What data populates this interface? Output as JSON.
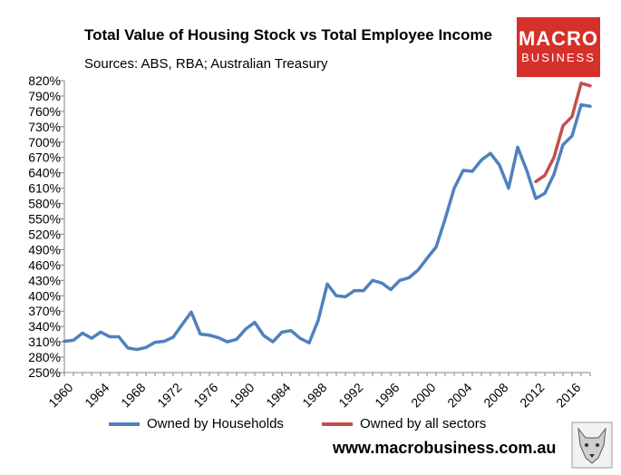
{
  "title": "Total Value of Housing Stock vs Total Employee Income",
  "subtitle": "Sources: ABS, RBA; Australian Treasury",
  "logo": {
    "line1": "MACRO",
    "line2": "BUSINESS",
    "color": "#d5302b"
  },
  "website": "www.macrobusiness.com.au",
  "chart_data": {
    "type": "line",
    "x": [
      1960,
      1961,
      1962,
      1963,
      1964,
      1965,
      1966,
      1967,
      1968,
      1969,
      1970,
      1971,
      1972,
      1973,
      1974,
      1975,
      1976,
      1977,
      1978,
      1979,
      1980,
      1981,
      1982,
      1983,
      1984,
      1985,
      1986,
      1987,
      1988,
      1989,
      1990,
      1991,
      1992,
      1993,
      1994,
      1995,
      1996,
      1997,
      1998,
      1999,
      2000,
      2001,
      2002,
      2003,
      2004,
      2005,
      2006,
      2007,
      2008,
      2009,
      2010,
      2011,
      2012,
      2013,
      2014,
      2015,
      2016,
      2017,
      2018
    ],
    "series": [
      {
        "name": "Owned by Households",
        "color": "#4f81bd",
        "values": [
          311,
          313,
          327,
          317,
          329,
          320,
          320,
          298,
          295,
          299,
          309,
          311,
          319,
          344,
          368,
          325,
          323,
          318,
          310,
          315,
          335,
          348,
          322,
          310,
          329,
          332,
          317,
          308,
          352,
          423,
          400,
          398,
          410,
          410,
          430,
          425,
          412,
          430,
          435,
          450,
          473,
          495,
          550,
          610,
          645,
          643,
          665,
          678,
          655,
          610,
          690,
          645,
          590,
          600,
          637,
          695,
          712,
          773,
          770
        ]
      },
      {
        "name": "Owned by all sectors",
        "color": "#c0504d",
        "values": [
          null,
          null,
          null,
          null,
          null,
          null,
          null,
          null,
          null,
          null,
          null,
          null,
          null,
          null,
          null,
          null,
          null,
          null,
          null,
          null,
          null,
          null,
          null,
          null,
          null,
          null,
          null,
          null,
          null,
          null,
          null,
          null,
          null,
          null,
          null,
          null,
          null,
          null,
          null,
          null,
          null,
          null,
          null,
          null,
          null,
          null,
          null,
          null,
          null,
          null,
          null,
          null,
          623,
          635,
          670,
          732,
          750,
          815,
          810
        ]
      }
    ],
    "xticks": [
      "1960",
      "1964",
      "1968",
      "1972",
      "1976",
      "1980",
      "1984",
      "1988",
      "1992",
      "1996",
      "2000",
      "2004",
      "2008",
      "2012",
      "2016"
    ],
    "yticks": [
      "250%",
      "280%",
      "310%",
      "340%",
      "370%",
      "400%",
      "430%",
      "460%",
      "490%",
      "520%",
      "550%",
      "580%",
      "610%",
      "640%",
      "670%",
      "700%",
      "730%",
      "760%",
      "790%",
      "820%"
    ],
    "ylim": [
      250,
      820
    ],
    "xlim": [
      1960,
      2018
    ],
    "grid": false,
    "legend_position": "bottom"
  }
}
